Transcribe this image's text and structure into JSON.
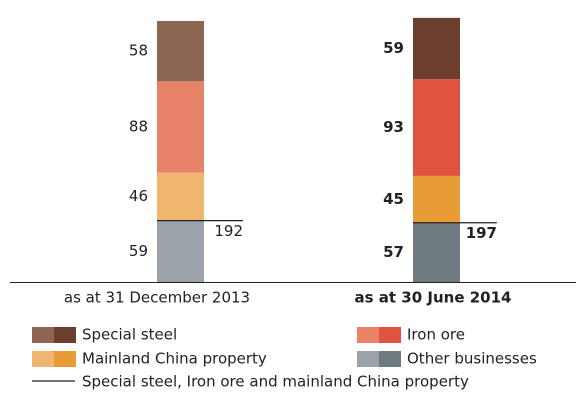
{
  "chart_data": {
    "type": "bar",
    "categories": [
      "as at 31 December 2013",
      "as at 30 June 2014"
    ],
    "series": [
      {
        "name": "Other businesses",
        "colors": [
          "#9aa3a8",
          "#6f7a80"
        ],
        "values": [
          59,
          57
        ]
      },
      {
        "name": "Mainland China property",
        "colors": [
          "#f0b56e",
          "#e89b36"
        ],
        "values": [
          46,
          45
        ]
      },
      {
        "name": "Iron ore",
        "colors": [
          "#e8836a",
          "#e0533f"
        ],
        "values": [
          88,
          93
        ]
      },
      {
        "name": "Special steel",
        "colors": [
          "#8c6553",
          "#6b3e2e"
        ],
        "values": [
          58,
          59
        ]
      }
    ],
    "line": {
      "name": "Special steel, Iron ore and mainland China property",
      "values": [
        192,
        197
      ]
    }
  }
}
